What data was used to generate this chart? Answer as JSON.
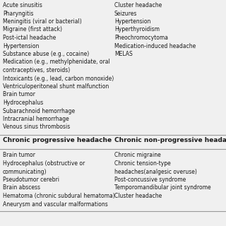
{
  "bg_color": "#f0f0f0",
  "text_color": "#1a1a1a",
  "separator_color": "#999999",
  "font_size": 5.5,
  "header_font_size": 6.5,
  "col1_header": "Chronic progressive headache",
  "col2_header": "Chronic non-progressive headache",
  "top_left_items": [
    "Acute sinusitis",
    "Pharyngitis",
    "Meningitis (viral or bacterial)",
    "Migraine (first attack)",
    "Post-ictal headache",
    "Hypertension",
    "Substance abuse (e.g., cocaine)",
    "Medication (e.g., methylphenidate, oral",
    "contraceptives, steroids)",
    "Intoxicants (e.g., lead, carbon monoxide)",
    "Ventriculoperitoneal shunt malfunction",
    "Brain tumor",
    "Hydrocephalus",
    "Subarachnoid hemorrhage",
    "Intracranial hemorrhage",
    "Venous sinus thrombosis"
  ],
  "top_right_items": [
    "Cluster headache",
    "Seizures",
    "Hypertension",
    "Hyperthyroidism",
    "Pheochromocytoma",
    "Medication-induced headache",
    "MELAS"
  ],
  "bottom_left_items": [
    "Brain tumor",
    "Hydrocephalus (obstructive or",
    "communicating)",
    "Pseudotumor cerebri",
    "Brain abscess",
    "Hematoma (chronic subdural hematoma)",
    "Aneurysm and vascular malformations"
  ],
  "bottom_right_items": [
    "Chronic migraine",
    "Chronic tension-type",
    "headaches(analgesic overuse)",
    "Post-concussive syndrome",
    "Temporomandibular joint syndrome",
    "Cluster headache"
  ]
}
